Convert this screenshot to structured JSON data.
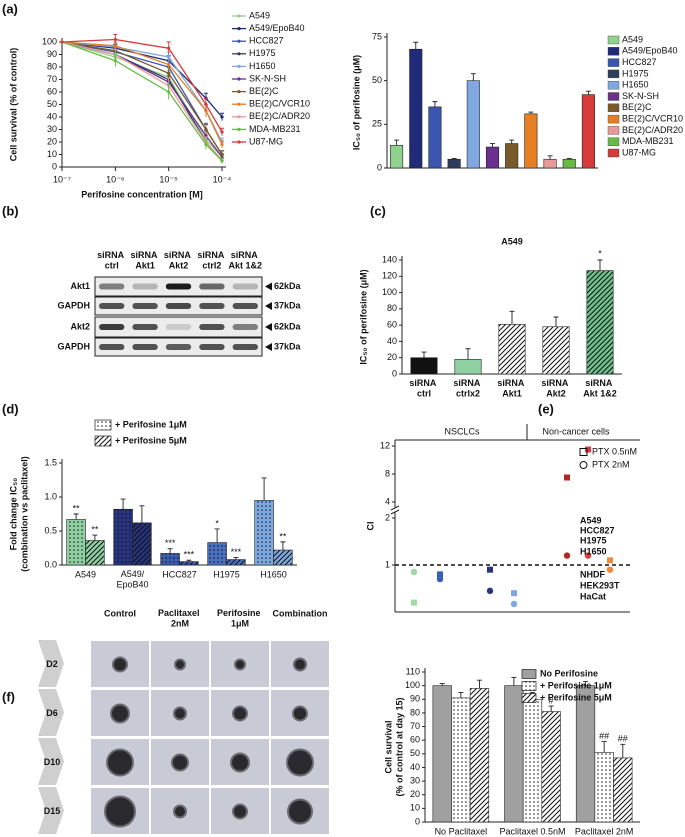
{
  "panel_labels": [
    "(a)",
    "(b)",
    "(c)",
    "(d)",
    "(e)",
    "(f)"
  ],
  "chart_data": [
    {
      "type": "line",
      "xlog": true,
      "x": [
        1e-07,
        1e-06,
        1e-05,
        5e-05,
        0.0001
      ],
      "xlim": [
        1e-07,
        0.0001
      ],
      "xticks": [
        {
          "value": 1e-07,
          "label": "10⁻⁷"
        },
        {
          "value": 1e-06,
          "label": "10⁻⁶"
        },
        {
          "value": 1e-05,
          "label": "10⁻⁵"
        },
        {
          "value": 0.0001,
          "label": "10⁻⁴"
        }
      ],
      "ylim": [
        0,
        100
      ],
      "yticks": [
        0,
        10,
        20,
        30,
        40,
        50,
        60,
        70,
        80,
        90,
        100
      ],
      "xlabel": "Perifosine concentration [M]",
      "ylabel": "Cell survival (% of control)",
      "series": [
        {
          "name": "A549",
          "color": "#8fd18f",
          "values": [
            100,
            88,
            72,
            22,
            8
          ],
          "errors": [
            0,
            3,
            5,
            4,
            2
          ]
        },
        {
          "name": "A549/EpoB40",
          "color": "#1f2a7a",
          "values": [
            100,
            95,
            85,
            55,
            40
          ],
          "errors": [
            0,
            3,
            4,
            4,
            3
          ]
        },
        {
          "name": "HCC827",
          "color": "#3a56b0",
          "values": [
            100,
            92,
            80,
            30,
            10
          ],
          "errors": [
            0,
            4,
            5,
            5,
            3
          ]
        },
        {
          "name": "H1975",
          "color": "#2f3d5c",
          "values": [
            100,
            90,
            70,
            20,
            5
          ],
          "errors": [
            0,
            4,
            5,
            4,
            2
          ]
        },
        {
          "name": "H1650",
          "color": "#7fa7e0",
          "values": [
            100,
            96,
            88,
            45,
            20
          ],
          "errors": [
            0,
            3,
            4,
            5,
            3
          ]
        },
        {
          "name": "SK-N-SH",
          "color": "#6a2f8f",
          "values": [
            100,
            90,
            68,
            25,
            8
          ],
          "errors": [
            0,
            4,
            5,
            4,
            2
          ]
        },
        {
          "name": "BE(2)C",
          "color": "#7a5a2a",
          "values": [
            100,
            93,
            75,
            30,
            10
          ],
          "errors": [
            0,
            3,
            5,
            4,
            3
          ]
        },
        {
          "name": "BE(2)C/VCR10",
          "color": "#e67e22",
          "values": [
            100,
            97,
            82,
            45,
            18
          ],
          "errors": [
            0,
            3,
            4,
            5,
            3
          ]
        },
        {
          "name": "BE(2)C/ADR20",
          "color": "#e89a9a",
          "values": [
            100,
            90,
            65,
            20,
            5
          ],
          "errors": [
            0,
            4,
            6,
            4,
            2
          ]
        },
        {
          "name": "MDA-MB231",
          "color": "#66bb44",
          "values": [
            100,
            85,
            60,
            18,
            5
          ],
          "errors": [
            0,
            5,
            6,
            4,
            2
          ]
        },
        {
          "name": "U87-MG",
          "color": "#d63a3a",
          "values": [
            100,
            102,
            95,
            50,
            28
          ],
          "errors": [
            0,
            4,
            5,
            5,
            3
          ]
        }
      ]
    },
    {
      "type": "bar",
      "legend": "right",
      "categories": [
        "A549",
        "A549/EpoB40",
        "HCC827",
        "H1975",
        "H1650",
        "SK-N-SH",
        "BE(2)C",
        "BE(2)C/VCR10",
        "BE(2)C/ADR20",
        "MDA-MB231",
        "U87-MG"
      ],
      "values": [
        13,
        68,
        35,
        5,
        50,
        12,
        14,
        31,
        5,
        5,
        42
      ],
      "errors": [
        3,
        4,
        3,
        0.5,
        4,
        2,
        2,
        1,
        2,
        0.5,
        2
      ],
      "colors": [
        "#8fd18f",
        "#1f2a7a",
        "#3a56b0",
        "#2f3d5c",
        "#7fa7e0",
        "#6a2f8f",
        "#7a5a2a",
        "#e67e22",
        "#e89a9a",
        "#66bb44",
        "#d63a3a"
      ],
      "ylim": [
        0,
        75
      ],
      "yticks": [
        0,
        25,
        50,
        75
      ],
      "ylabel": "IC₅₀ of perifosine (μM)"
    },
    {
      "type": "bar",
      "title": "A549",
      "categories": [
        "siRNA ctrl",
        "siRNA ctrlx2",
        "siRNA Akt1",
        "siRNA Akt2",
        "siRNA Akt 1&2"
      ],
      "values": [
        20,
        18,
        61,
        58,
        127
      ],
      "errors": [
        7,
        13,
        16,
        12,
        13
      ],
      "colors": [
        "#111111",
        "#8fd0a2",
        "#ffffff",
        "#ffffff",
        "#6cc38c"
      ],
      "patterns": [
        null,
        null,
        "hatch",
        "hatch",
        "hatch"
      ],
      "annotations": [
        null,
        null,
        null,
        null,
        "*"
      ],
      "ylim": [
        0,
        140
      ],
      "yticks": [
        0,
        20,
        40,
        60,
        80,
        100,
        120,
        140
      ],
      "ylabel": "IC₅₀ of perifosine (μM)"
    },
    {
      "type": "grouped_bar",
      "categories": [
        "A549",
        "A549/EpoB40",
        "HCC827",
        "H1975",
        "H1650"
      ],
      "category_colors": [
        "#8fd0a2",
        "#27337e",
        "#3b5cb0",
        "#4a6fc0",
        "#7ea8e0"
      ],
      "series": [
        {
          "name": "+ Perifosine 1μM",
          "pattern": "dots",
          "values": [
            0.67,
            0.82,
            0.17,
            0.33,
            0.95
          ],
          "errors": [
            0.08,
            0.15,
            0.07,
            0.2,
            0.33
          ],
          "annotations": [
            "**",
            null,
            "***",
            "*",
            null
          ]
        },
        {
          "name": "+ Perifosine 5μM",
          "pattern": "hatch",
          "values": [
            0.36,
            0.62,
            0.05,
            0.08,
            0.22
          ],
          "errors": [
            0.08,
            0.25,
            0.02,
            0.03,
            0.12
          ],
          "annotations": [
            "**",
            null,
            "***",
            "***",
            "**"
          ]
        }
      ],
      "ylim": [
        0,
        1.5
      ],
      "yticks": [
        {
          "value": 0,
          "label": "0.0"
        },
        0.5,
        {
          "value": 1,
          "label": "1.0"
        },
        1.5
      ],
      "ylabel": [
        "Fold change IC₅₀",
        "(combination vs paclitaxel)"
      ]
    },
    {
      "type": "scatter",
      "categories": [
        "A549",
        "HCC827",
        "H1975",
        "H1650",
        "NHDF",
        "HEK293T",
        "HaCat"
      ],
      "category_colors": [
        "#9fd9a5",
        "#3a5fb5",
        "#27337e",
        "#7ea8e0",
        "#b32626",
        "#e03a3a",
        "#f08a3a"
      ],
      "groups": [
        "NSCLCs",
        "Non-cancer cells"
      ],
      "group_colors": [
        "#3b4fa8",
        "#222222"
      ],
      "series": [
        {
          "name": "PTX 0.5nM",
          "marker": "square",
          "values": [
            0.2,
            0.8,
            0.9,
            0.4,
            7.5,
            11.5,
            1.1
          ]
        },
        {
          "name": "PTX 2nM",
          "marker": "circle",
          "values": [
            0.85,
            0.7,
            0.45,
            0.17,
            1.2,
            1.2,
            0.9
          ]
        }
      ],
      "ylim": [
        0,
        12
      ],
      "ybreak": [
        2,
        4
      ],
      "yticks": [
        1,
        2,
        4,
        8,
        12
      ],
      "reference_line": 1,
      "ylabel": "CI"
    },
    {
      "type": "grouped_bar",
      "categories": [
        "No Paclitaxel",
        "Paclitaxel 0.5nM",
        "Paclitaxel 2nM"
      ],
      "series": [
        {
          "name": "No Perifosine",
          "color": "#a0a0a0",
          "values": [
            100,
            100,
            100
          ],
          "errors": [
            1.5,
            6,
            3
          ]
        },
        {
          "name": "+ Perifosine 1μM",
          "color": "#ffffff",
          "pattern": "dots",
          "values": [
            91,
            90,
            51
          ],
          "errors": [
            4,
            5,
            8
          ],
          "annotations": [
            null,
            null,
            "##"
          ]
        },
        {
          "name": "+ Perifosine 5μM",
          "color": "#ffffff",
          "pattern": "hatch",
          "values": [
            98,
            81,
            47
          ],
          "errors": [
            6,
            4,
            10
          ],
          "annotations": [
            null,
            "#",
            "##"
          ]
        }
      ],
      "ylim": [
        0,
        110
      ],
      "yticks": [
        0,
        10,
        20,
        30,
        40,
        50,
        60,
        70,
        80,
        90,
        100,
        110
      ],
      "ylabel": [
        "Cell survival",
        "(% of control at day 15)"
      ]
    }
  ],
  "blot": {
    "columns": [
      "siRNA ctrl",
      "siRNA Akt1",
      "siRNA Akt2",
      "siRNA ctrl2",
      "siRNA Akt 1&2"
    ],
    "rows": [
      "Akt1",
      "GAPDH",
      "Akt2",
      "GAPDH"
    ],
    "sizes": [
      "62kDa",
      "37kDa",
      "62kDa",
      "37kDa"
    ]
  },
  "spheroids": {
    "columns": [
      "Control",
      "Paclitaxel 2nM",
      "Perifosine 1μM",
      "Combination"
    ],
    "rows": [
      "D2",
      "D6",
      "D10",
      "D15"
    ]
  }
}
